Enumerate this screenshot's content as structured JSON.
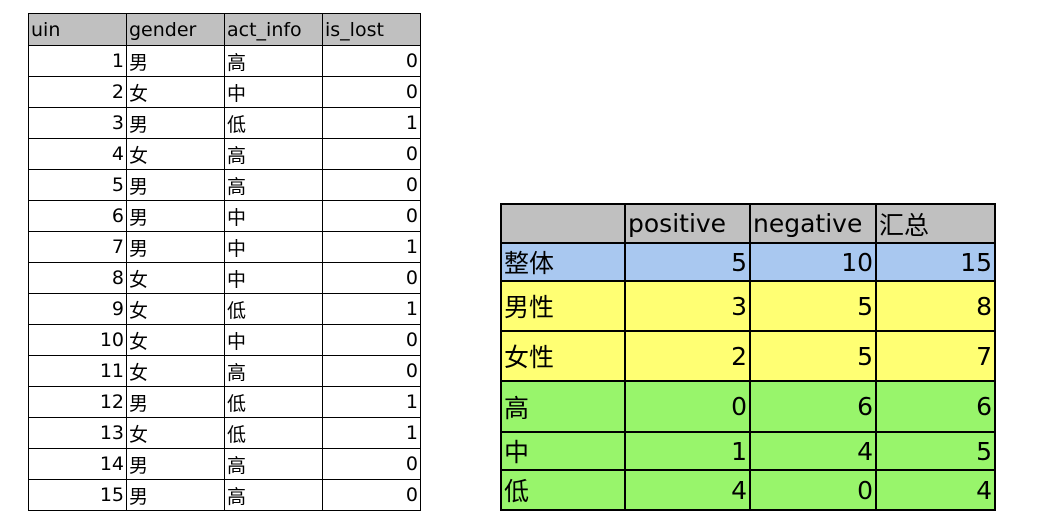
{
  "raw_table": {
    "headers": [
      "uin",
      "gender",
      "act_info",
      "is_lost"
    ],
    "rows": [
      [
        "1",
        "男",
        "高",
        "0"
      ],
      [
        "2",
        "女",
        "中",
        "0"
      ],
      [
        "3",
        "男",
        "低",
        "1"
      ],
      [
        "4",
        "女",
        "高",
        "0"
      ],
      [
        "5",
        "男",
        "高",
        "0"
      ],
      [
        "6",
        "男",
        "中",
        "0"
      ],
      [
        "7",
        "男",
        "中",
        "1"
      ],
      [
        "8",
        "女",
        "中",
        "0"
      ],
      [
        "9",
        "女",
        "低",
        "1"
      ],
      [
        "10",
        "女",
        "中",
        "0"
      ],
      [
        "11",
        "女",
        "高",
        "0"
      ],
      [
        "12",
        "男",
        "低",
        "1"
      ],
      [
        "13",
        "女",
        "低",
        "1"
      ],
      [
        "14",
        "男",
        "高",
        "0"
      ],
      [
        "15",
        "男",
        "高",
        "0"
      ]
    ]
  },
  "summary_table": {
    "headers": [
      "",
      "positive",
      "negative",
      "汇总"
    ],
    "rows": [
      {
        "label": "整体",
        "values": [
          "5",
          "10",
          "15"
        ],
        "color": "#a9c8f0"
      },
      {
        "label": "男性",
        "values": [
          "3",
          "5",
          "8"
        ],
        "color": "#ffff73"
      },
      {
        "label": "女性",
        "values": [
          "2",
          "5",
          "7"
        ],
        "color": "#ffff73"
      },
      {
        "label": "高",
        "values": [
          "0",
          "6",
          "6"
        ],
        "color": "#98f56b"
      },
      {
        "label": "中",
        "values": [
          "1",
          "4",
          "5"
        ],
        "color": "#98f56b"
      },
      {
        "label": "低",
        "values": [
          "4",
          "0",
          "4"
        ],
        "color": "#98f56b"
      }
    ]
  }
}
